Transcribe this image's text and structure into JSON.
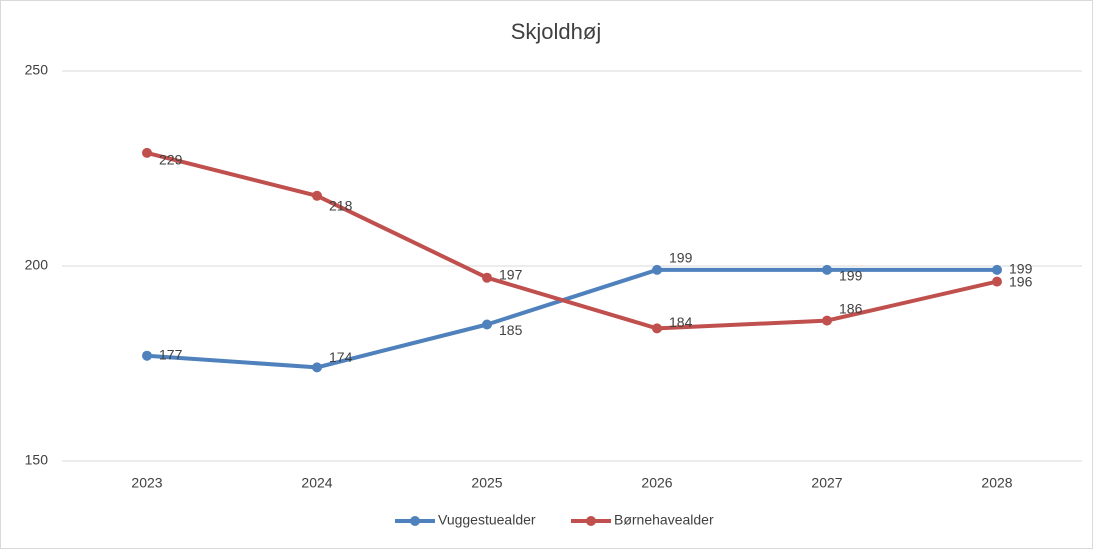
{
  "chart_data": {
    "type": "line",
    "title": "Skjoldhøj",
    "categories": [
      "2023",
      "2024",
      "2025",
      "2026",
      "2027",
      "2028"
    ],
    "series": [
      {
        "name": "Vuggestuealder",
        "color": "#4f81bd",
        "values": [
          177,
          174,
          185,
          199,
          199,
          199
        ]
      },
      {
        "name": "Børnehavealder",
        "color": "#c0504d",
        "values": [
          229,
          218,
          197,
          184,
          186,
          196
        ]
      }
    ],
    "ylim": [
      150,
      250
    ],
    "yticks": [
      150,
      200,
      250
    ],
    "grid": true,
    "legend": "bottom"
  }
}
